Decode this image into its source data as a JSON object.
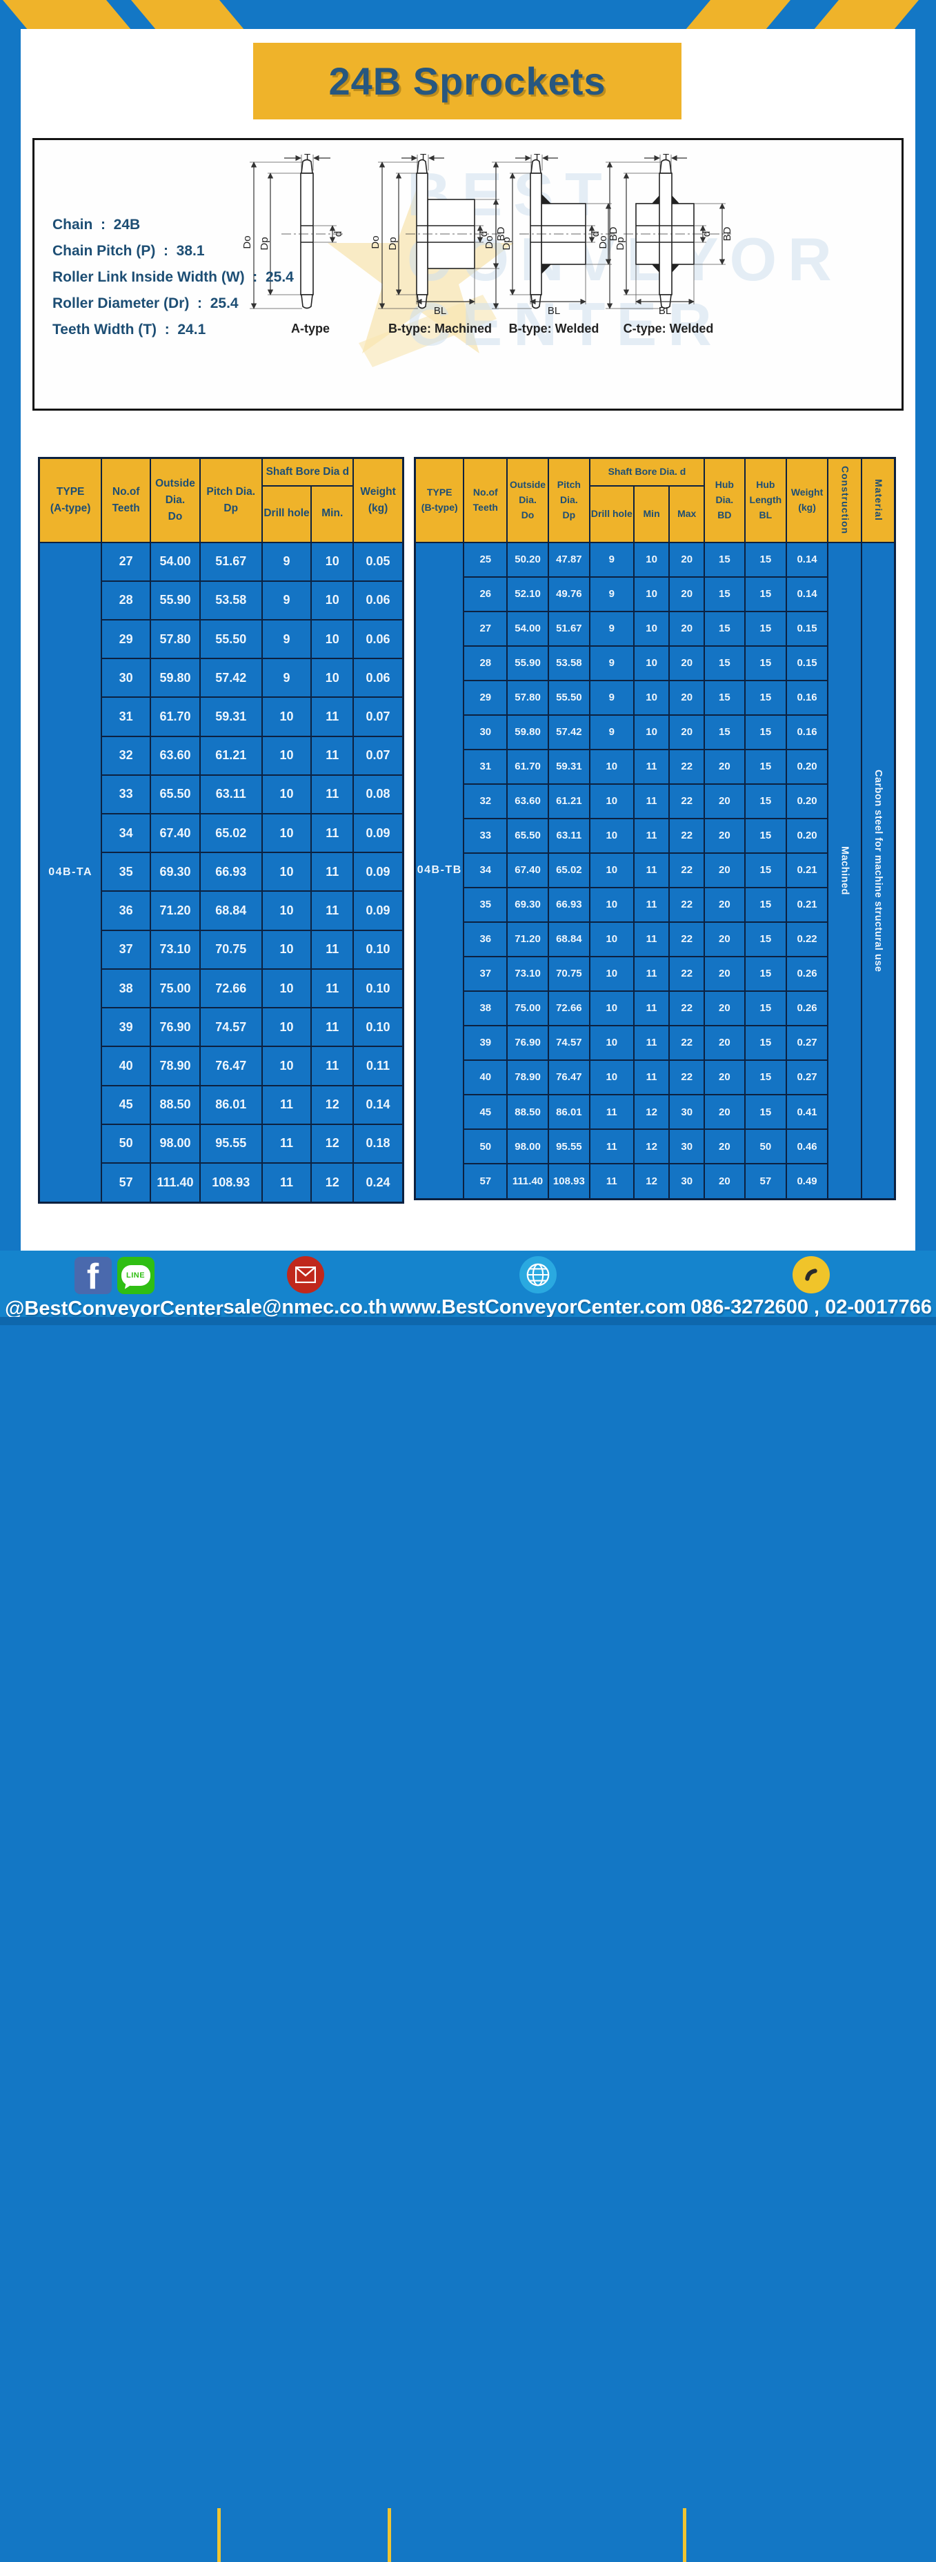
{
  "header": {
    "title": "24B Sprockets"
  },
  "specs": [
    {
      "label": "Chain",
      "value": "24B"
    },
    {
      "label": "Chain Pitch (P)",
      "value": "38.1"
    },
    {
      "label": "Roller Link Inside Width (W)",
      "value": "25.4"
    },
    {
      "label": "Roller Diameter (Dr)",
      "value": "25.4"
    },
    {
      "label": "Teeth Width (T)",
      "value": "24.1"
    }
  ],
  "dim_labels": {
    "t": "T",
    "do": "Do",
    "dp": "Dp",
    "d": "d",
    "bd": "BD",
    "bl": "BL"
  },
  "watermark": {
    "line1": "BEST",
    "line2": "CONVEYOR",
    "line3": "CENTER"
  },
  "diagrams": [
    {
      "caption": "A-type"
    },
    {
      "caption": "B-type: Machined"
    },
    {
      "caption": "B-type: Welded"
    },
    {
      "caption": "C-type: Welded"
    }
  ],
  "table_a": {
    "type_label": "04B-TA",
    "header_rows": [
      [
        {
          "lines": [
            "TYPE",
            "(A-type)"
          ],
          "rowspan": 2
        },
        {
          "lines": [
            "No.of",
            "Teeth"
          ],
          "rowspan": 2
        },
        {
          "lines": [
            "Outside",
            "Dia.",
            "Do"
          ],
          "rowspan": 2
        },
        {
          "lines": [
            "Pitch Dia.",
            "Dp"
          ],
          "rowspan": 2
        },
        {
          "lines": [
            "Shaft Bore Dia d"
          ],
          "colspan": 2
        },
        {
          "lines": [
            "Weight",
            "(kg)"
          ],
          "rowspan": 2
        }
      ],
      [
        {
          "lines": [
            "Drill hole"
          ]
        },
        {
          "lines": [
            "Min."
          ]
        }
      ]
    ],
    "rows": [
      [
        "27",
        "54.00",
        "51.67",
        "9",
        "10",
        "0.05"
      ],
      [
        "28",
        "55.90",
        "53.58",
        "9",
        "10",
        "0.06"
      ],
      [
        "29",
        "57.80",
        "55.50",
        "9",
        "10",
        "0.06"
      ],
      [
        "30",
        "59.80",
        "57.42",
        "9",
        "10",
        "0.06"
      ],
      [
        "31",
        "61.70",
        "59.31",
        "10",
        "11",
        "0.07"
      ],
      [
        "32",
        "63.60",
        "61.21",
        "10",
        "11",
        "0.07"
      ],
      [
        "33",
        "65.50",
        "63.11",
        "10",
        "11",
        "0.08"
      ],
      [
        "34",
        "67.40",
        "65.02",
        "10",
        "11",
        "0.09"
      ],
      [
        "35",
        "69.30",
        "66.93",
        "10",
        "11",
        "0.09"
      ],
      [
        "36",
        "71.20",
        "68.84",
        "10",
        "11",
        "0.09"
      ],
      [
        "37",
        "73.10",
        "70.75",
        "10",
        "11",
        "0.10"
      ],
      [
        "38",
        "75.00",
        "72.66",
        "10",
        "11",
        "0.10"
      ],
      [
        "39",
        "76.90",
        "74.57",
        "10",
        "11",
        "0.10"
      ],
      [
        "40",
        "78.90",
        "76.47",
        "10",
        "11",
        "0.11"
      ],
      [
        "45",
        "88.50",
        "86.01",
        "11",
        "12",
        "0.14"
      ],
      [
        "50",
        "98.00",
        "95.55",
        "11",
        "12",
        "0.18"
      ],
      [
        "57",
        "111.40",
        "108.93",
        "11",
        "12",
        "0.24"
      ]
    ]
  },
  "table_b": {
    "type_label": "04B-TB",
    "construction": "Machined",
    "material": "Carbon steel for machine structural use",
    "header_rows": [
      [
        {
          "lines": [
            "TYPE",
            "(B-type)"
          ],
          "rowspan": 2
        },
        {
          "lines": [
            "No.of",
            "Teeth"
          ],
          "rowspan": 2
        },
        {
          "lines": [
            "Outside",
            "Dia.",
            "Do"
          ],
          "rowspan": 2
        },
        {
          "lines": [
            "Pitch",
            "Dia.",
            "Dp"
          ],
          "rowspan": 2
        },
        {
          "lines": [
            "Shaft Bore Dia.  d"
          ],
          "colspan": 3
        },
        {
          "lines": [
            "Hub",
            "Dia.",
            "BD"
          ],
          "rowspan": 2
        },
        {
          "lines": [
            "Hub",
            "Length",
            "BL"
          ],
          "rowspan": 2
        },
        {
          "lines": [
            "Weight",
            "(kg)"
          ],
          "rowspan": 2
        },
        {
          "lines": [
            "Construction"
          ],
          "rowspan": 2,
          "vertical": true
        },
        {
          "lines": [
            "Material"
          ],
          "rowspan": 2,
          "vertical": true
        }
      ],
      [
        {
          "lines": [
            "Drill hole"
          ]
        },
        {
          "lines": [
            "Min"
          ]
        },
        {
          "lines": [
            "Max"
          ]
        }
      ]
    ],
    "rows": [
      [
        "25",
        "50.20",
        "47.87",
        "9",
        "10",
        "20",
        "15",
        "15",
        "0.14"
      ],
      [
        "26",
        "52.10",
        "49.76",
        "9",
        "10",
        "20",
        "15",
        "15",
        "0.14"
      ],
      [
        "27",
        "54.00",
        "51.67",
        "9",
        "10",
        "20",
        "15",
        "15",
        "0.15"
      ],
      [
        "28",
        "55.90",
        "53.58",
        "9",
        "10",
        "20",
        "15",
        "15",
        "0.15"
      ],
      [
        "29",
        "57.80",
        "55.50",
        "9",
        "10",
        "20",
        "15",
        "15",
        "0.16"
      ],
      [
        "30",
        "59.80",
        "57.42",
        "9",
        "10",
        "20",
        "15",
        "15",
        "0.16"
      ],
      [
        "31",
        "61.70",
        "59.31",
        "10",
        "11",
        "22",
        "20",
        "15",
        "0.20"
      ],
      [
        "32",
        "63.60",
        "61.21",
        "10",
        "11",
        "22",
        "20",
        "15",
        "0.20"
      ],
      [
        "33",
        "65.50",
        "63.11",
        "10",
        "11",
        "22",
        "20",
        "15",
        "0.20"
      ],
      [
        "34",
        "67.40",
        "65.02",
        "10",
        "11",
        "22",
        "20",
        "15",
        "0.21"
      ],
      [
        "35",
        "69.30",
        "66.93",
        "10",
        "11",
        "22",
        "20",
        "15",
        "0.21"
      ],
      [
        "36",
        "71.20",
        "68.84",
        "10",
        "11",
        "22",
        "20",
        "15",
        "0.22"
      ],
      [
        "37",
        "73.10",
        "70.75",
        "10",
        "11",
        "22",
        "20",
        "15",
        "0.26"
      ],
      [
        "38",
        "75.00",
        "72.66",
        "10",
        "11",
        "22",
        "20",
        "15",
        "0.26"
      ],
      [
        "39",
        "76.90",
        "74.57",
        "10",
        "11",
        "22",
        "20",
        "15",
        "0.27"
      ],
      [
        "40",
        "78.90",
        "76.47",
        "10",
        "11",
        "22",
        "20",
        "15",
        "0.27"
      ],
      [
        "45",
        "88.50",
        "86.01",
        "11",
        "12",
        "30",
        "20",
        "15",
        "0.41"
      ],
      [
        "50",
        "98.00",
        "95.55",
        "11",
        "12",
        "30",
        "20",
        "50",
        "0.46"
      ],
      [
        "57",
        "111.40",
        "108.93",
        "11",
        "12",
        "30",
        "20",
        "57",
        "0.49"
      ]
    ]
  },
  "footer": {
    "social_handle": "@BestConveyorCenter",
    "line_label": "LINE",
    "email": "sale@nmec.co.th",
    "website": "www.BestConveyorCenter.com",
    "phone": "086-3272600 , 02-0017766"
  },
  "colors": {
    "frame_blue": "#1377c5",
    "cell_blue": "#1474c4",
    "gold": "#efb32a",
    "navy_text": "#1d4e74",
    "table_border": "#0c2140",
    "footer_blue": "#1584cd"
  }
}
